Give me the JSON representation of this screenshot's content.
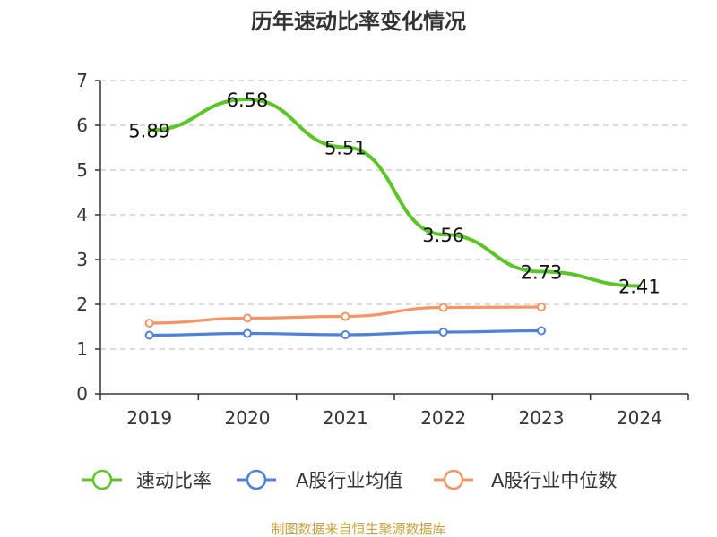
{
  "chart_data": {
    "type": "line",
    "title": "历年速动比率变化情况",
    "categories": [
      "2019",
      "2020",
      "2021",
      "2022",
      "2023",
      "2024"
    ],
    "ylim": [
      0,
      7
    ],
    "yticks": [
      0,
      1,
      2,
      3,
      4,
      5,
      6,
      7
    ],
    "grid": true,
    "legend_position": "bottom",
    "series": [
      {
        "name": "速动比率",
        "color": "#5cc52a",
        "values": [
          5.89,
          6.58,
          5.51,
          3.56,
          2.73,
          2.41
        ],
        "labels": [
          "5.89",
          "6.58",
          "5.51",
          "3.56",
          "2.73",
          "2.41"
        ],
        "markers": false
      },
      {
        "name": "A股行业均值",
        "color": "#4f81d9",
        "values": [
          1.31,
          1.35,
          1.32,
          1.38,
          1.41,
          null
        ],
        "markers": true
      },
      {
        "name": "A股行业中位数",
        "color": "#f59464",
        "values": [
          1.58,
          1.69,
          1.73,
          1.93,
          1.94,
          null
        ],
        "markers": true
      }
    ]
  },
  "footer": {
    "source": "制图数据来自恒生聚源数据库"
  }
}
